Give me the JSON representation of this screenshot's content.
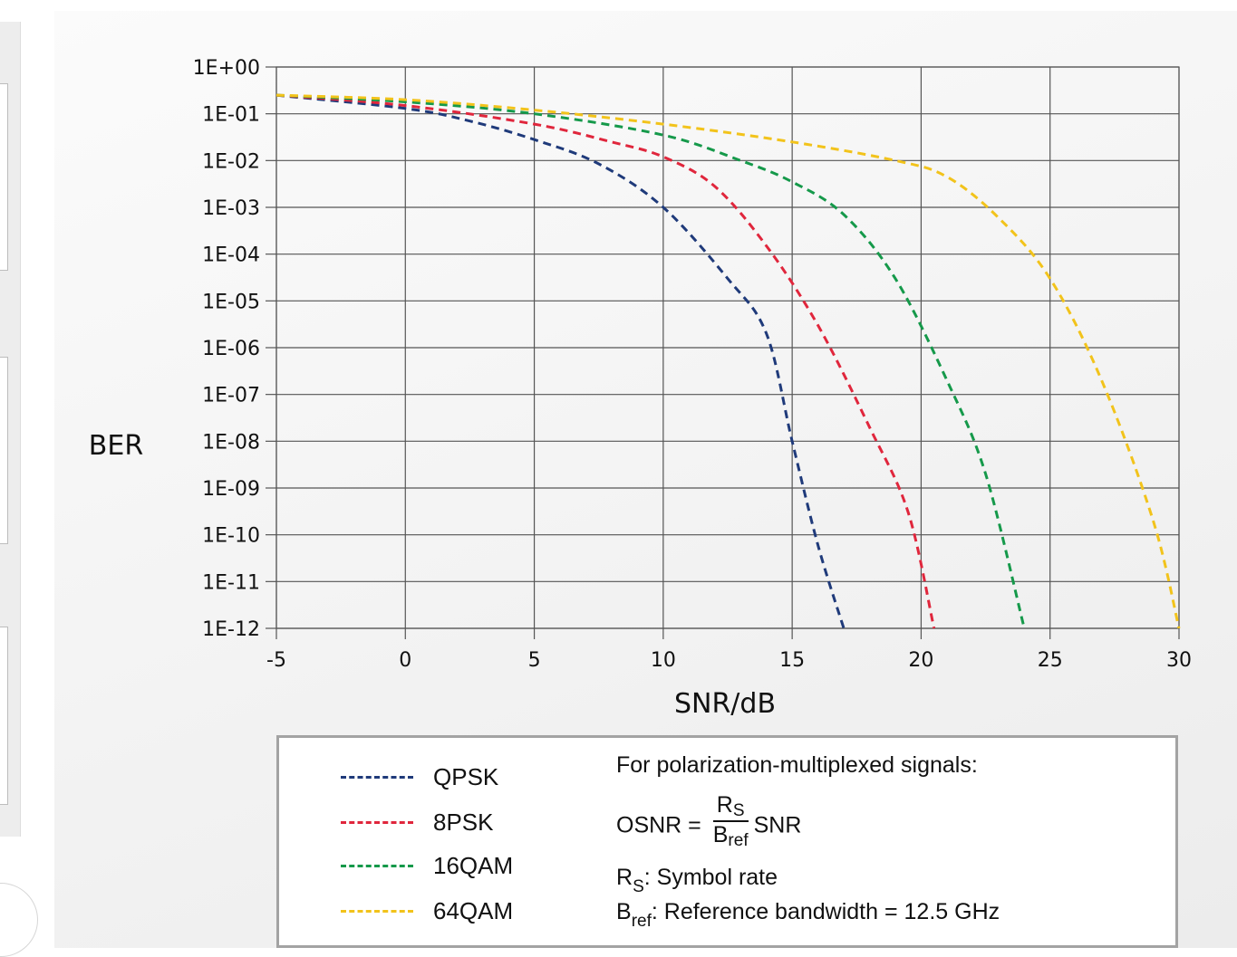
{
  "colors": {
    "QPSK": "#1f3a7a",
    "8PSK": "#e0263c",
    "16QAM": "#15994a",
    "64QAM": "#f2c31b",
    "grid": "#555555"
  },
  "chart_data": {
    "type": "line",
    "title": "",
    "xlabel": "SNR/dB",
    "ylabel": "BER",
    "y_scale": "log",
    "xlim": [
      -5,
      30
    ],
    "ylim": [
      1e-12,
      1
    ],
    "x_ticks": [
      "-5",
      "0",
      "5",
      "10",
      "15",
      "20",
      "25",
      "30"
    ],
    "y_ticks": [
      "1E+00",
      "1E-01",
      "1E-02",
      "1E-03",
      "1E-04",
      "1E-05",
      "1E-06",
      "1E-07",
      "1E-08",
      "1E-09",
      "1E-10",
      "1E-11",
      "1E-12"
    ],
    "grid": true,
    "legend_position": "bottom",
    "series": [
      {
        "name": "QPSK",
        "style": "dashed",
        "x": [
          -5,
          0,
          2.5,
          5,
          7.5,
          10,
          12.5,
          14,
          15,
          16,
          17
        ],
        "y": [
          0.25,
          0.13,
          0.07,
          0.028,
          0.0085,
          0.001,
          3e-05,
          2e-06,
          1e-08,
          6e-11,
          1e-12
        ]
      },
      {
        "name": "8PSK",
        "style": "dashed",
        "x": [
          -5,
          0,
          5,
          8,
          10,
          12,
          14,
          16,
          18,
          19.5,
          20.5
        ],
        "y": [
          0.25,
          0.15,
          0.06,
          0.025,
          0.012,
          0.0028,
          0.00015,
          3e-06,
          2e-08,
          3e-10,
          1e-12
        ]
      },
      {
        "name": "16QAM",
        "style": "dashed",
        "x": [
          -5,
          0,
          5,
          10,
          13,
          15,
          17,
          19,
          21,
          22.5,
          24
        ],
        "y": [
          0.25,
          0.18,
          0.1,
          0.035,
          0.01,
          0.0035,
          0.0007,
          3e-05,
          2e-07,
          2e-09,
          1e-12
        ]
      },
      {
        "name": "64QAM",
        "style": "dashed",
        "x": [
          -5,
          0,
          5,
          10,
          15,
          19,
          21,
          23,
          25,
          27,
          29,
          30
        ],
        "y": [
          0.25,
          0.2,
          0.12,
          0.06,
          0.025,
          0.01,
          0.0045,
          0.0006,
          3e-05,
          2e-07,
          2e-10,
          1e-12
        ]
      }
    ],
    "legend": [
      "QPSK",
      "8PSK",
      "16QAM",
      "64QAM"
    ]
  },
  "legend_labels": {
    "qpsk": "QPSK",
    "psk8": "8PSK",
    "qam16": "16QAM",
    "qam64": "64QAM"
  },
  "notes": {
    "heading": "For polarization-multiplexed signals:",
    "formula_lhs": "OSNR = ",
    "formula_num_main": "R",
    "formula_num_sub": "S",
    "formula_den_main": "B",
    "formula_den_sub": "ref",
    "formula_rhs": "SNR",
    "rs_main": "R",
    "rs_sub": "S",
    "rs_text": ": Symbol rate",
    "bref_main": "B",
    "bref_sub": "ref",
    "bref_text": ": Reference bandwidth = 12.5 GHz"
  }
}
